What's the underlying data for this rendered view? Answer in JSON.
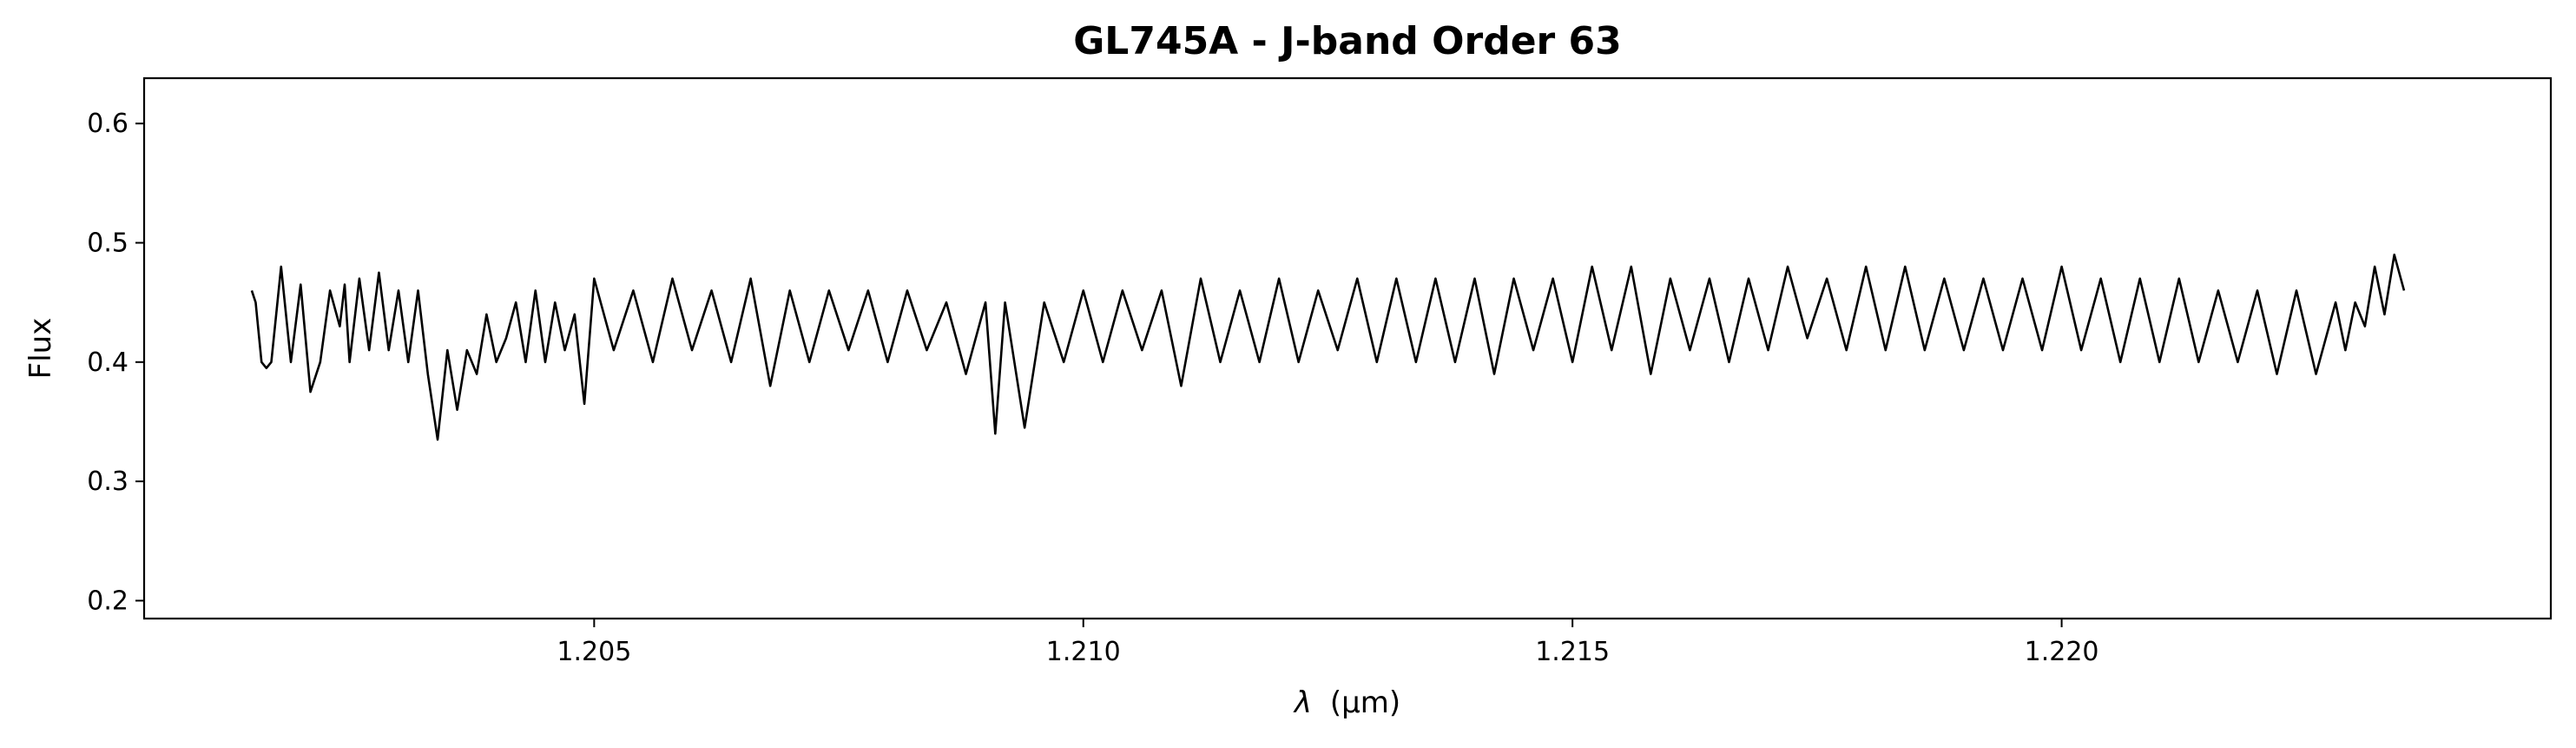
{
  "chart_data": {
    "type": "line",
    "title": "GL745A - J-band Order 63",
    "xlabel_symbol": "λ",
    "xlabel_unit": "(μm)",
    "ylabel": "Flux",
    "xlim": [
      1.2004,
      1.225
    ],
    "ylim": [
      0.185,
      0.638
    ],
    "grid": false,
    "legend": "none",
    "line_color": "#000000",
    "x_ticks": [
      1.205,
      1.21,
      1.215,
      1.22
    ],
    "x_tick_labels": [
      "1.205",
      "1.210",
      "1.215",
      "1.220"
    ],
    "y_ticks": [
      0.2,
      0.3,
      0.4,
      0.5,
      0.6
    ],
    "y_tick_labels": [
      "0.2",
      "0.3",
      "0.4",
      "0.5",
      "0.6"
    ],
    "series": [
      {
        "x": [
          1.2015,
          1.20154,
          1.2016,
          1.20165,
          1.2017,
          1.2018,
          1.2019,
          1.202,
          1.2021,
          1.2022,
          1.2023,
          1.2024,
          1.20245,
          1.2025,
          1.2026,
          1.2027,
          1.2028,
          1.2029,
          1.203,
          1.2031,
          1.2032,
          1.2033,
          1.2034,
          1.2035,
          1.2036,
          1.2037,
          1.2038,
          1.2039,
          1.204,
          1.2041,
          1.2042,
          1.2043,
          1.2044,
          1.2045,
          1.2046,
          1.2047,
          1.2048,
          1.2049,
          1.205,
          1.2052,
          1.2054,
          1.2056,
          1.2058,
          1.206,
          1.2062,
          1.2064,
          1.2066,
          1.2068,
          1.207,
          1.2072,
          1.2074,
          1.2076,
          1.2078,
          1.208,
          1.2082,
          1.2084,
          1.2086,
          1.2088,
          1.209,
          1.2091,
          1.2092,
          1.2094,
          1.2096,
          1.2098,
          1.21,
          1.2102,
          1.2104,
          1.2106,
          1.2108,
          1.211,
          1.2112,
          1.2114,
          1.2116,
          1.2118,
          1.212,
          1.2122,
          1.2124,
          1.2126,
          1.2128,
          1.213,
          1.2132,
          1.2134,
          1.2136,
          1.2138,
          1.214,
          1.2142,
          1.2144,
          1.2146,
          1.2148,
          1.215,
          1.2152,
          1.2154,
          1.2156,
          1.2158,
          1.216,
          1.2162,
          1.2164,
          1.2166,
          1.2168,
          1.217,
          1.2172,
          1.2174,
          1.2176,
          1.2178,
          1.218,
          1.2182,
          1.2184,
          1.2186,
          1.2188,
          1.219,
          1.2192,
          1.2194,
          1.2196,
          1.2198,
          1.22,
          1.2202,
          1.2204,
          1.2206,
          1.2208,
          1.221,
          1.2212,
          1.2214,
          1.2216,
          1.2218,
          1.222,
          1.2222,
          1.2224,
          1.2226,
          1.2228,
          1.2229,
          1.223,
          1.2231,
          1.2232,
          1.2233,
          1.2234,
          1.2235
        ],
        "y": [
          0.46,
          0.45,
          0.4,
          0.395,
          0.4,
          0.48,
          0.4,
          0.465,
          0.375,
          0.4,
          0.46,
          0.43,
          0.465,
          0.4,
          0.47,
          0.41,
          0.475,
          0.41,
          0.46,
          0.4,
          0.46,
          0.39,
          0.335,
          0.41,
          0.36,
          0.41,
          0.39,
          0.44,
          0.4,
          0.42,
          0.45,
          0.4,
          0.46,
          0.4,
          0.45,
          0.41,
          0.44,
          0.365,
          0.47,
          0.41,
          0.46,
          0.4,
          0.47,
          0.41,
          0.46,
          0.4,
          0.47,
          0.38,
          0.46,
          0.4,
          0.46,
          0.41,
          0.46,
          0.4,
          0.46,
          0.41,
          0.45,
          0.39,
          0.45,
          0.34,
          0.45,
          0.345,
          0.45,
          0.4,
          0.46,
          0.4,
          0.46,
          0.41,
          0.46,
          0.38,
          0.47,
          0.4,
          0.46,
          0.4,
          0.47,
          0.4,
          0.46,
          0.41,
          0.47,
          0.4,
          0.47,
          0.4,
          0.47,
          0.4,
          0.47,
          0.39,
          0.47,
          0.41,
          0.47,
          0.4,
          0.48,
          0.41,
          0.48,
          0.39,
          0.47,
          0.41,
          0.47,
          0.4,
          0.47,
          0.41,
          0.48,
          0.42,
          0.47,
          0.41,
          0.48,
          0.41,
          0.48,
          0.41,
          0.47,
          0.41,
          0.47,
          0.41,
          0.47,
          0.41,
          0.48,
          0.41,
          0.47,
          0.4,
          0.47,
          0.4,
          0.47,
          0.4,
          0.46,
          0.4,
          0.46,
          0.39,
          0.46,
          0.39,
          0.45,
          0.41,
          0.45,
          0.43,
          0.48,
          0.44,
          0.49,
          0.46
        ]
      }
    ]
  }
}
